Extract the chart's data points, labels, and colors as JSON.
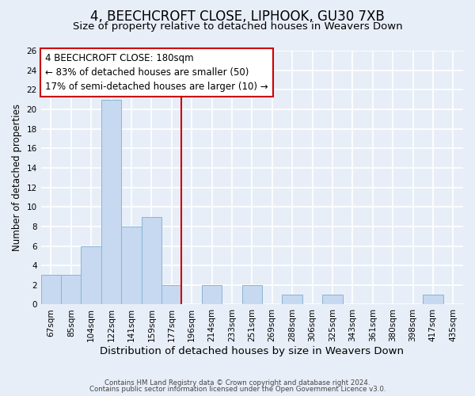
{
  "title": "4, BEECHCROFT CLOSE, LIPHOOK, GU30 7XB",
  "subtitle": "Size of property relative to detached houses in Weavers Down",
  "xlabel": "Distribution of detached houses by size in Weavers Down",
  "ylabel": "Number of detached properties",
  "bin_labels": [
    "67sqm",
    "85sqm",
    "104sqm",
    "122sqm",
    "141sqm",
    "159sqm",
    "177sqm",
    "196sqm",
    "214sqm",
    "233sqm",
    "251sqm",
    "269sqm",
    "288sqm",
    "306sqm",
    "325sqm",
    "343sqm",
    "361sqm",
    "380sqm",
    "398sqm",
    "417sqm",
    "435sqm"
  ],
  "bar_heights": [
    3,
    3,
    6,
    21,
    8,
    9,
    2,
    0,
    2,
    0,
    2,
    0,
    1,
    0,
    1,
    0,
    0,
    0,
    0,
    1,
    0
  ],
  "bar_color": "#c6d9f0",
  "bar_edge_color": "#8ab4d4",
  "vline_x_index": 6,
  "vline_color": "#cc0000",
  "annotation_text": "4 BEECHCROFT CLOSE: 180sqm\n← 83% of detached houses are smaller (50)\n17% of semi-detached houses are larger (10) →",
  "annotation_box_color": "#ffffff",
  "annotation_box_edge_color": "#cc0000",
  "ylim": [
    0,
    26
  ],
  "yticks": [
    0,
    2,
    4,
    6,
    8,
    10,
    12,
    14,
    16,
    18,
    20,
    22,
    24,
    26
  ],
  "title_fontsize": 12,
  "subtitle_fontsize": 9.5,
  "xlabel_fontsize": 9.5,
  "ylabel_fontsize": 8.5,
  "tick_fontsize": 7.5,
  "annotation_fontsize": 8.5,
  "footer_line1": "Contains HM Land Registry data © Crown copyright and database right 2024.",
  "footer_line2": "Contains public sector information licensed under the Open Government Licence v3.0.",
  "background_color": "#e8eef8",
  "plot_bg_color": "#e8eef8",
  "grid_color": "#ffffff"
}
